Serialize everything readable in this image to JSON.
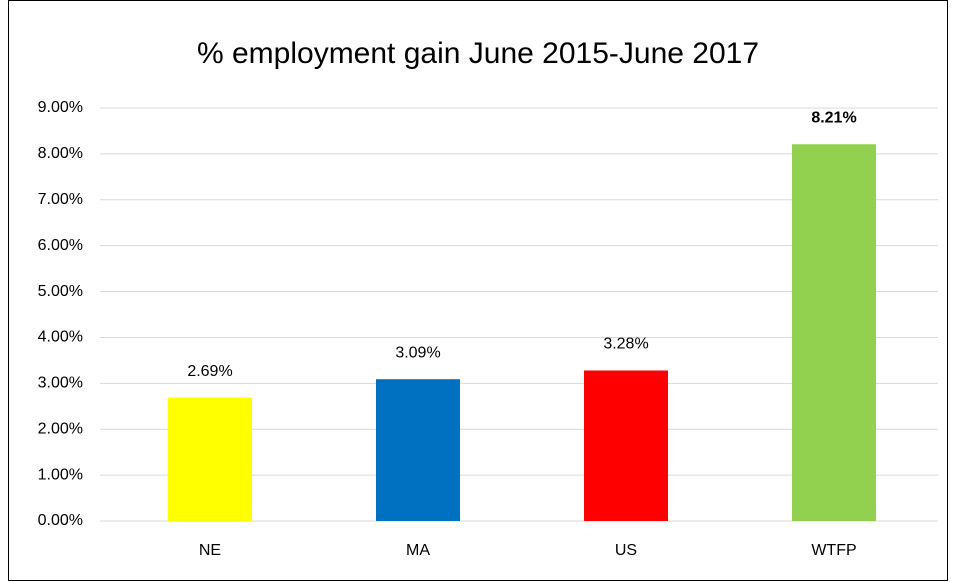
{
  "chart_data": {
    "type": "bar",
    "title": "% employment gain June 2015-June 2017",
    "categories": [
      "NE",
      "MA",
      "US",
      "WTFP"
    ],
    "values": [
      2.69,
      3.09,
      3.28,
      8.21
    ],
    "value_labels": [
      "2.69%",
      "3.09%",
      "3.28%",
      "8.21%"
    ],
    "value_label_bold": [
      false,
      false,
      false,
      true
    ],
    "colors": [
      "#ffff00",
      "#0070c0",
      "#ff0000",
      "#92d050"
    ],
    "ylim": [
      0,
      9
    ],
    "yticks": [
      {
        "value": 0,
        "label": "0.00%"
      },
      {
        "value": 1,
        "label": "1.00%"
      },
      {
        "value": 2,
        "label": "2.00%"
      },
      {
        "value": 3,
        "label": "3.00%"
      },
      {
        "value": 4,
        "label": "4.00%"
      },
      {
        "value": 5,
        "label": "5.00%"
      },
      {
        "value": 6,
        "label": "6.00%"
      },
      {
        "value": 7,
        "label": "7.00%"
      },
      {
        "value": 8,
        "label": "8.00%"
      },
      {
        "value": 9,
        "label": "9.00%"
      }
    ],
    "grid": true
  }
}
